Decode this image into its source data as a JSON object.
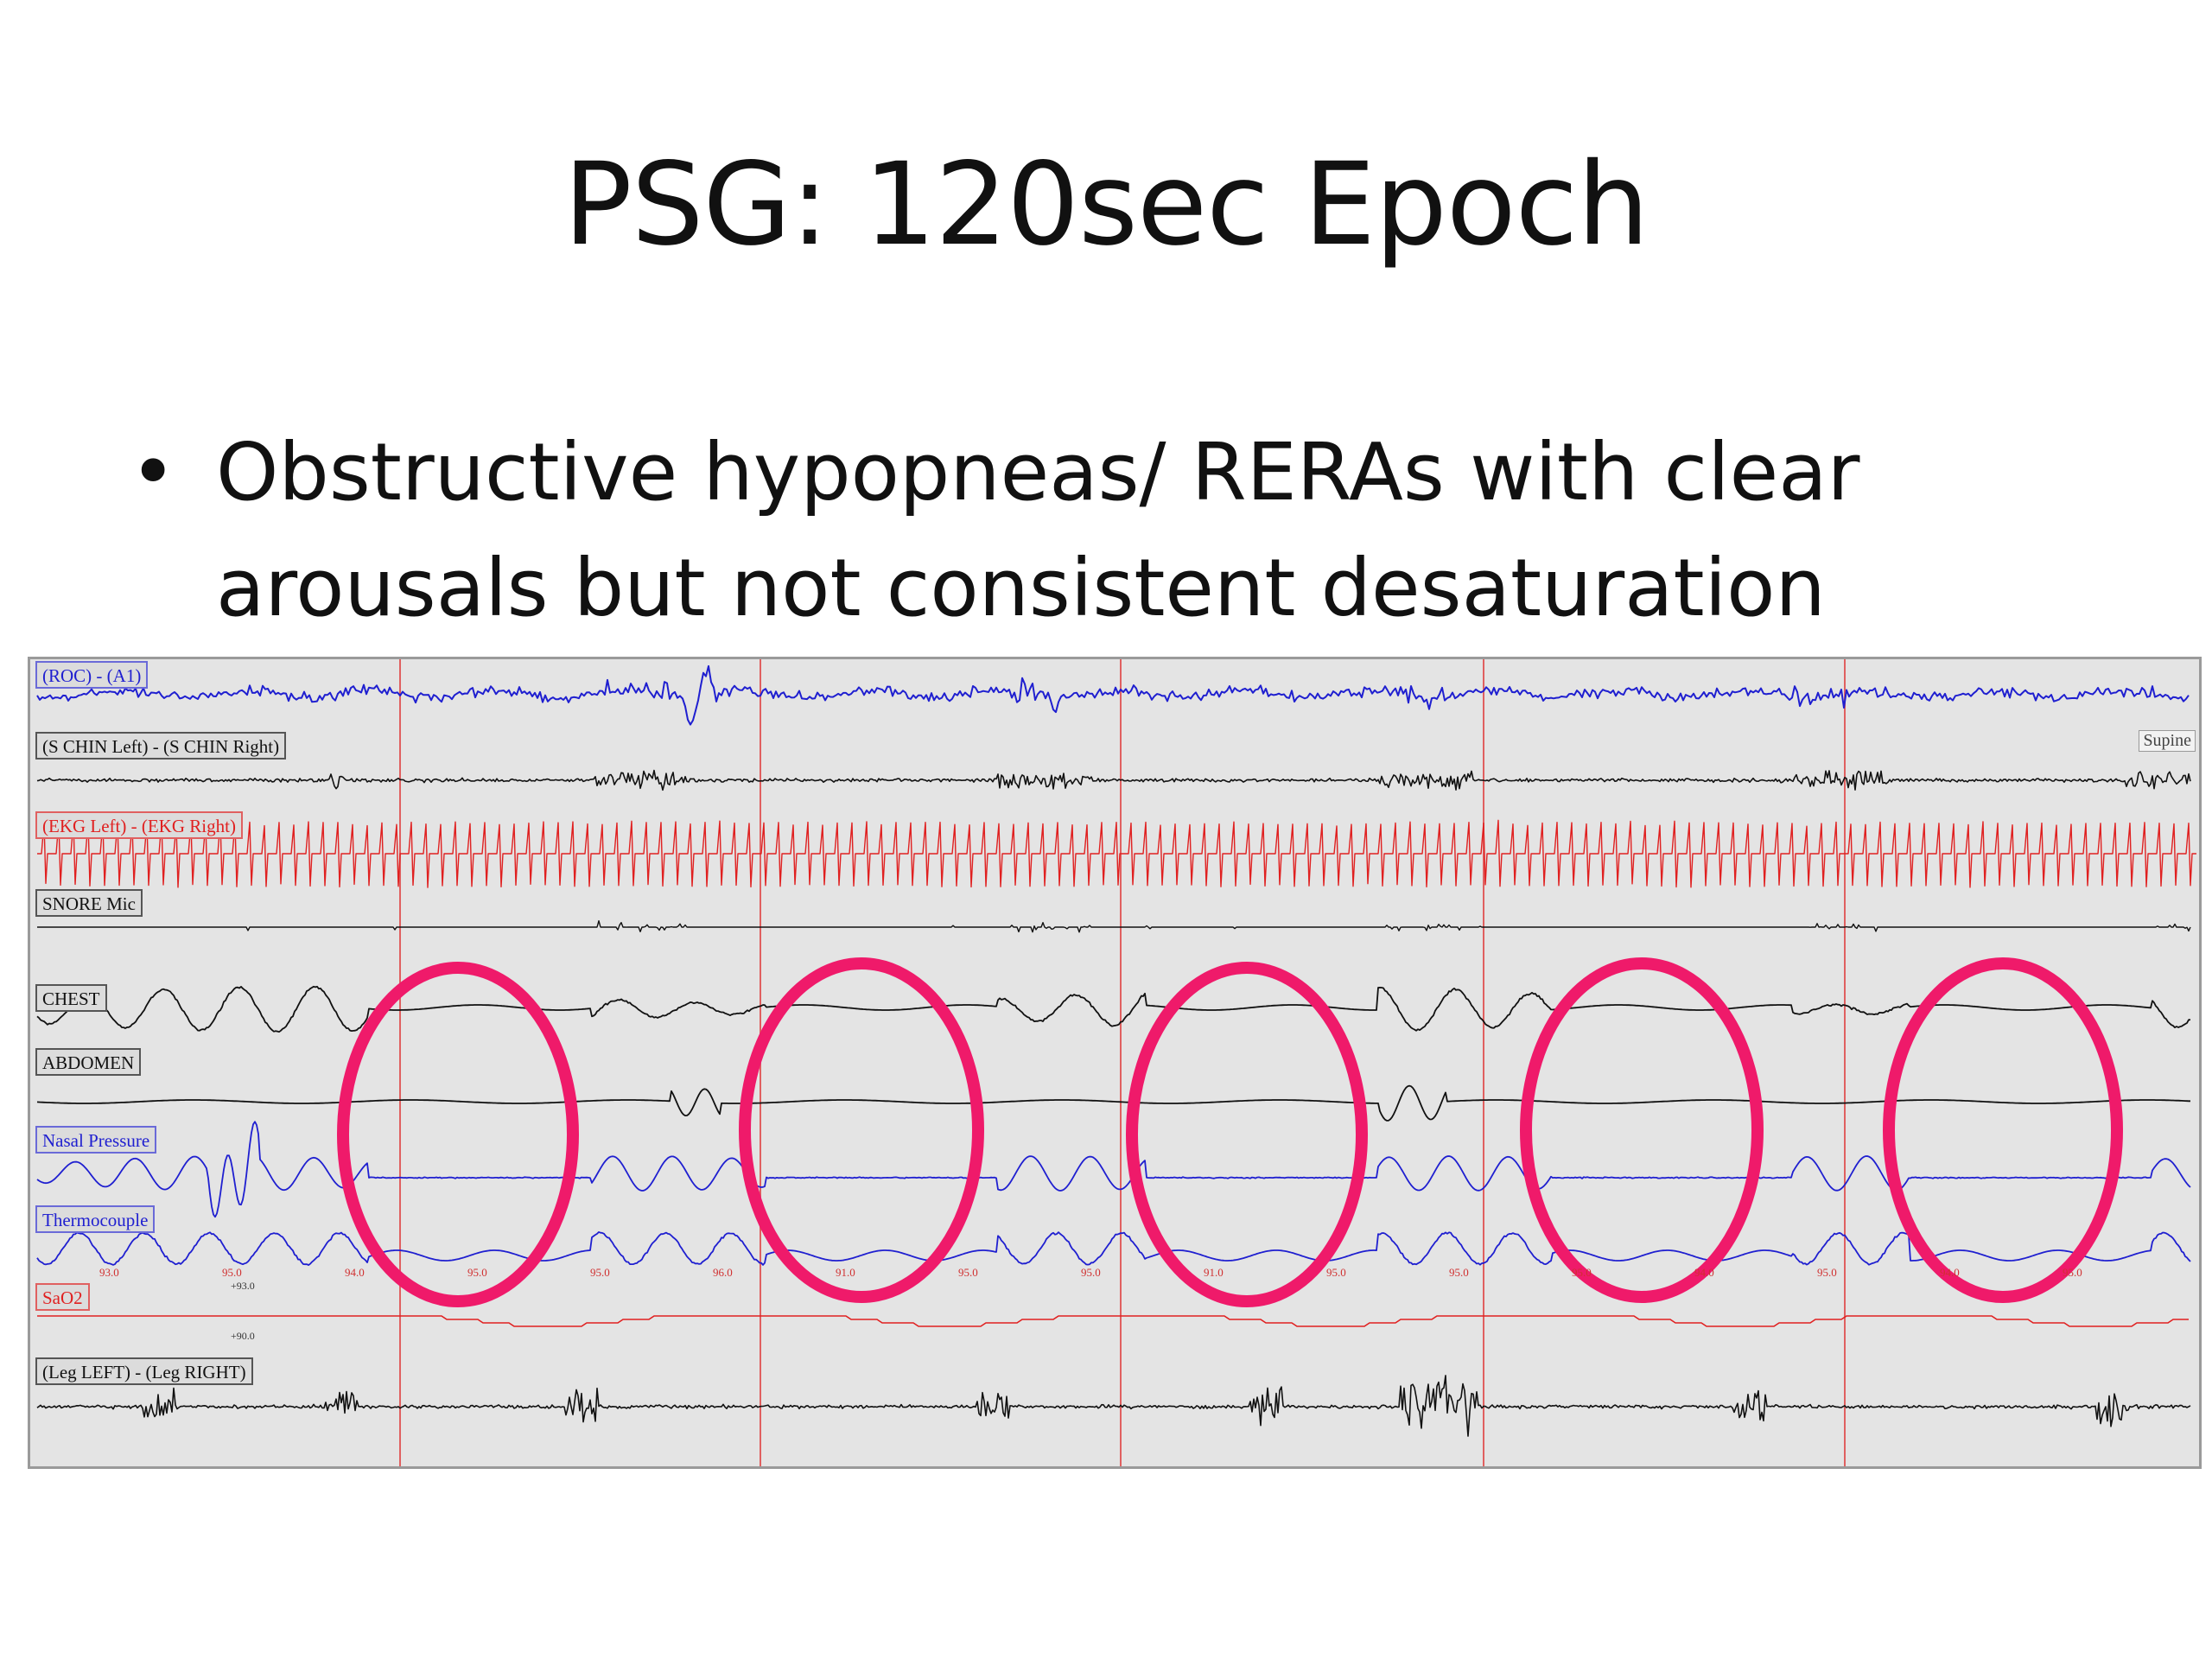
{
  "slide": {
    "title": "PSG: 120sec Epoch",
    "bullets": [
      "Obstructive hypopneas/ RERAs with clear arousals but not consistent desaturation"
    ]
  },
  "channels": [
    {
      "label": "(ROC) - (A1)",
      "color": "#1f1fd0",
      "kind": "eeg"
    },
    {
      "label": "(S CHIN Left) - (S CHIN Right)",
      "color": "#111111",
      "kind": "emg"
    },
    {
      "label": "(EKG Left) - (EKG Right)",
      "color": "#e02020",
      "kind": "ekg"
    },
    {
      "label": "SNORE Mic",
      "color": "#111111",
      "kind": "snore"
    },
    {
      "label": "CHEST",
      "color": "#111111",
      "kind": "effort"
    },
    {
      "label": "ABDOMEN",
      "color": "#111111",
      "kind": "effort-flat"
    },
    {
      "label": "Nasal Pressure",
      "color": "#1f1fd0",
      "kind": "flow"
    },
    {
      "label": "Thermocouple",
      "color": "#1f1fd0",
      "kind": "thermo"
    },
    {
      "label": "SaO2",
      "color": "#e02020",
      "kind": "sao2"
    },
    {
      "label": "(Leg LEFT) - (Leg RIGHT)",
      "color": "#111111",
      "kind": "leg"
    }
  ],
  "position_label": "Supine",
  "sao2_values": [
    "93.0",
    "95.0",
    "94.0",
    "95.0",
    "95.0",
    "96.0",
    "91.0",
    "95.0",
    "95.0",
    "91.0",
    "95.0",
    "95.0",
    "95.0",
    "94.0",
    "95.0",
    "94.0",
    "95.0"
  ],
  "sao2_scale": {
    "top": "+93.0",
    "bottom": "+90.0"
  },
  "colors": {
    "annotation": "#ef1a6a",
    "gridline": "#e06060",
    "background": "#e4e4e4"
  }
}
